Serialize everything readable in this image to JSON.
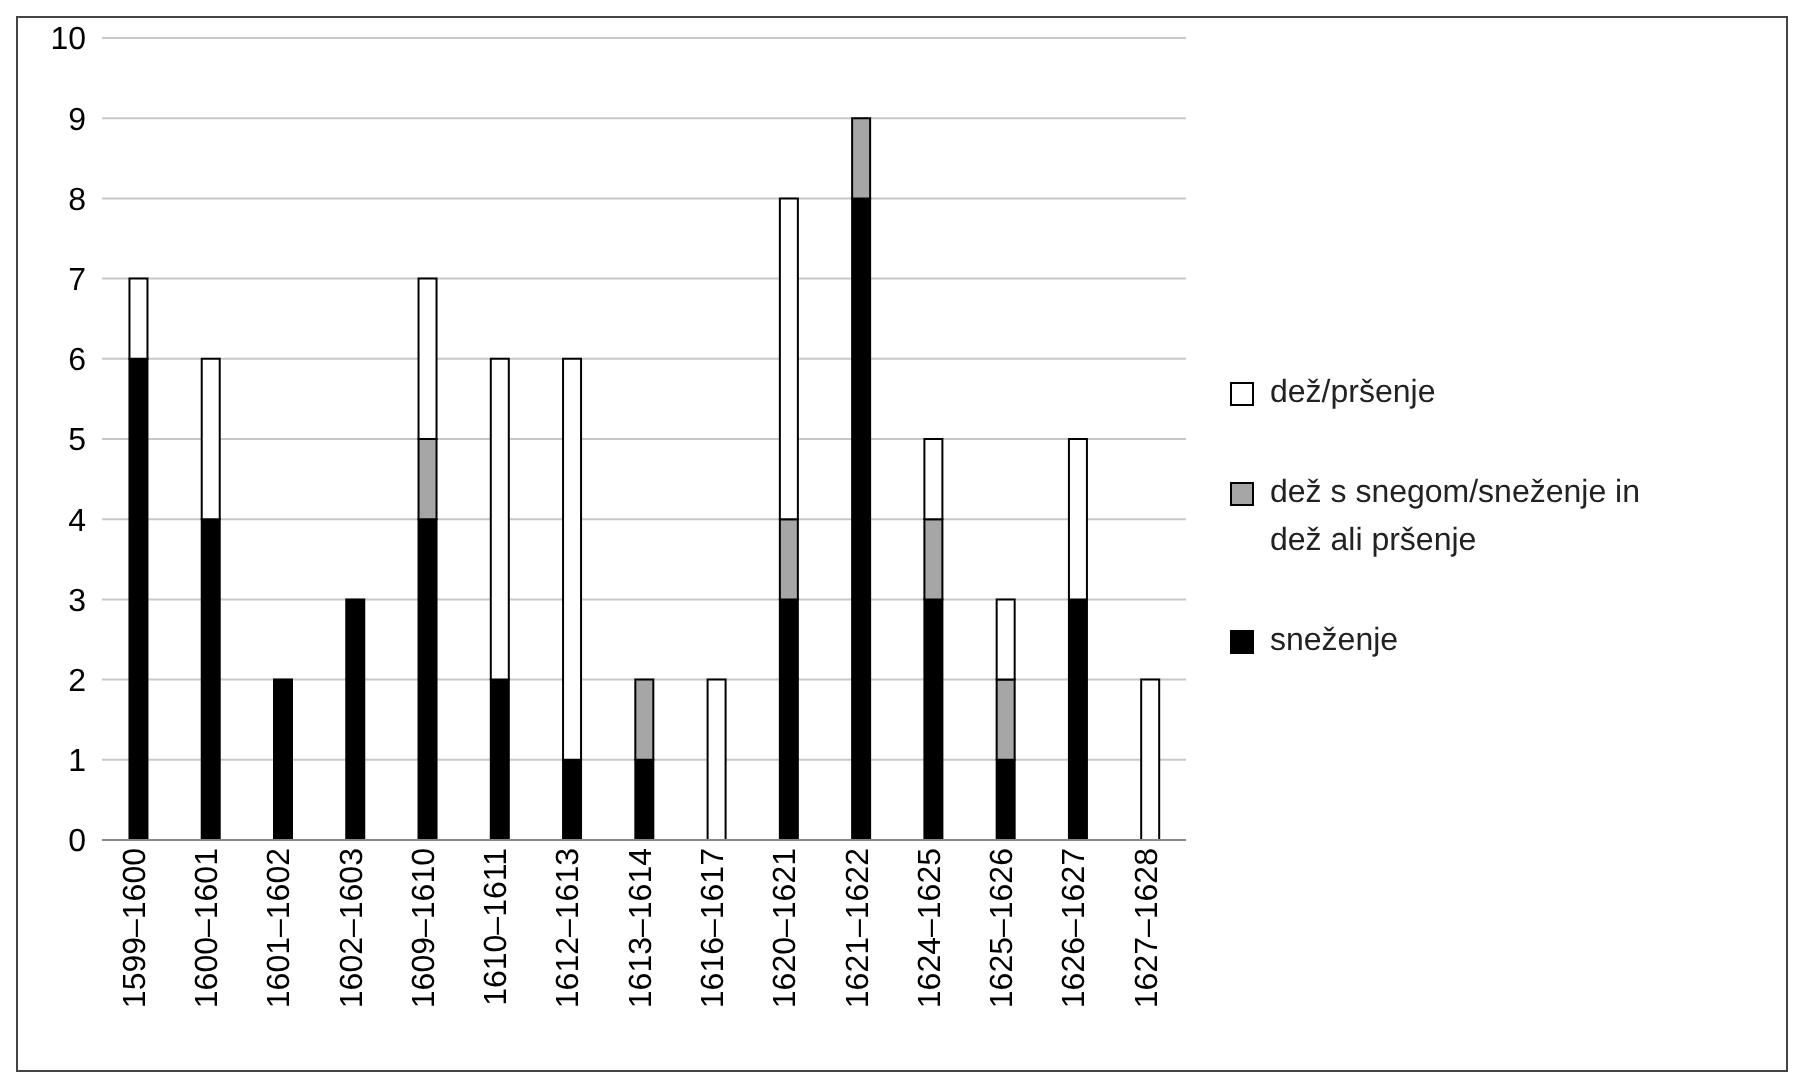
{
  "chart_data": {
    "type": "bar",
    "stacked": true,
    "categories": [
      "1599–1600",
      "1600–1601",
      "1601–1602",
      "1602–1603",
      "1609–1610",
      "1610–1611",
      "1612–1613",
      "1613–1614",
      "1616–1617",
      "1620–1621",
      "1621–1622",
      "1624–1625",
      "1625–1626",
      "1626–1627",
      "1627–1628"
    ],
    "series": [
      {
        "name": "sneženje",
        "color": "#000000",
        "values": [
          6,
          4,
          2,
          3,
          4,
          2,
          1,
          1,
          0,
          3,
          8,
          3,
          1,
          3,
          0
        ]
      },
      {
        "name": "dež s snegom/sneženje in dež ali pršenje",
        "color": "#a6a6a6",
        "values": [
          0,
          0,
          0,
          0,
          1,
          0,
          0,
          1,
          0,
          1,
          1,
          1,
          1,
          0,
          0
        ]
      },
      {
        "name": "dež/pršenje",
        "color": "#ffffff",
        "values": [
          1,
          2,
          0,
          0,
          2,
          4,
          5,
          0,
          2,
          4,
          0,
          1,
          1,
          2,
          2
        ]
      }
    ],
    "ylim": [
      0,
      10
    ],
    "yticks": [
      0,
      1,
      2,
      3,
      4,
      5,
      6,
      7,
      8,
      9,
      10
    ],
    "grid": "y",
    "legend": "right"
  }
}
